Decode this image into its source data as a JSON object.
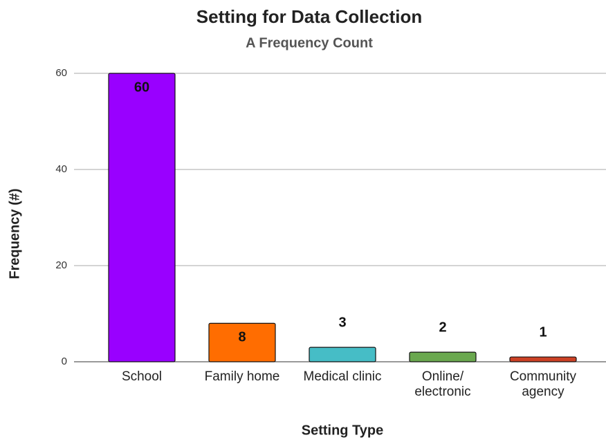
{
  "chart_data": {
    "type": "bar",
    "title": "Setting for Data Collection",
    "subtitle": "A Frequency Count",
    "x_label": "Setting Type",
    "y_label": "Frequency (#)",
    "categories": [
      "School",
      "Family home",
      "Medical clinic",
      "Online/ electronic",
      "Community agency"
    ],
    "values": [
      60,
      8,
      3,
      2,
      1
    ],
    "colors": [
      "#9900ff",
      "#ff6d01",
      "#46bdc6",
      "#6aa84f",
      "#cc4125"
    ],
    "ylim": [
      0,
      60
    ],
    "yticks": [
      0,
      20,
      40,
      60
    ],
    "grid": true
  }
}
